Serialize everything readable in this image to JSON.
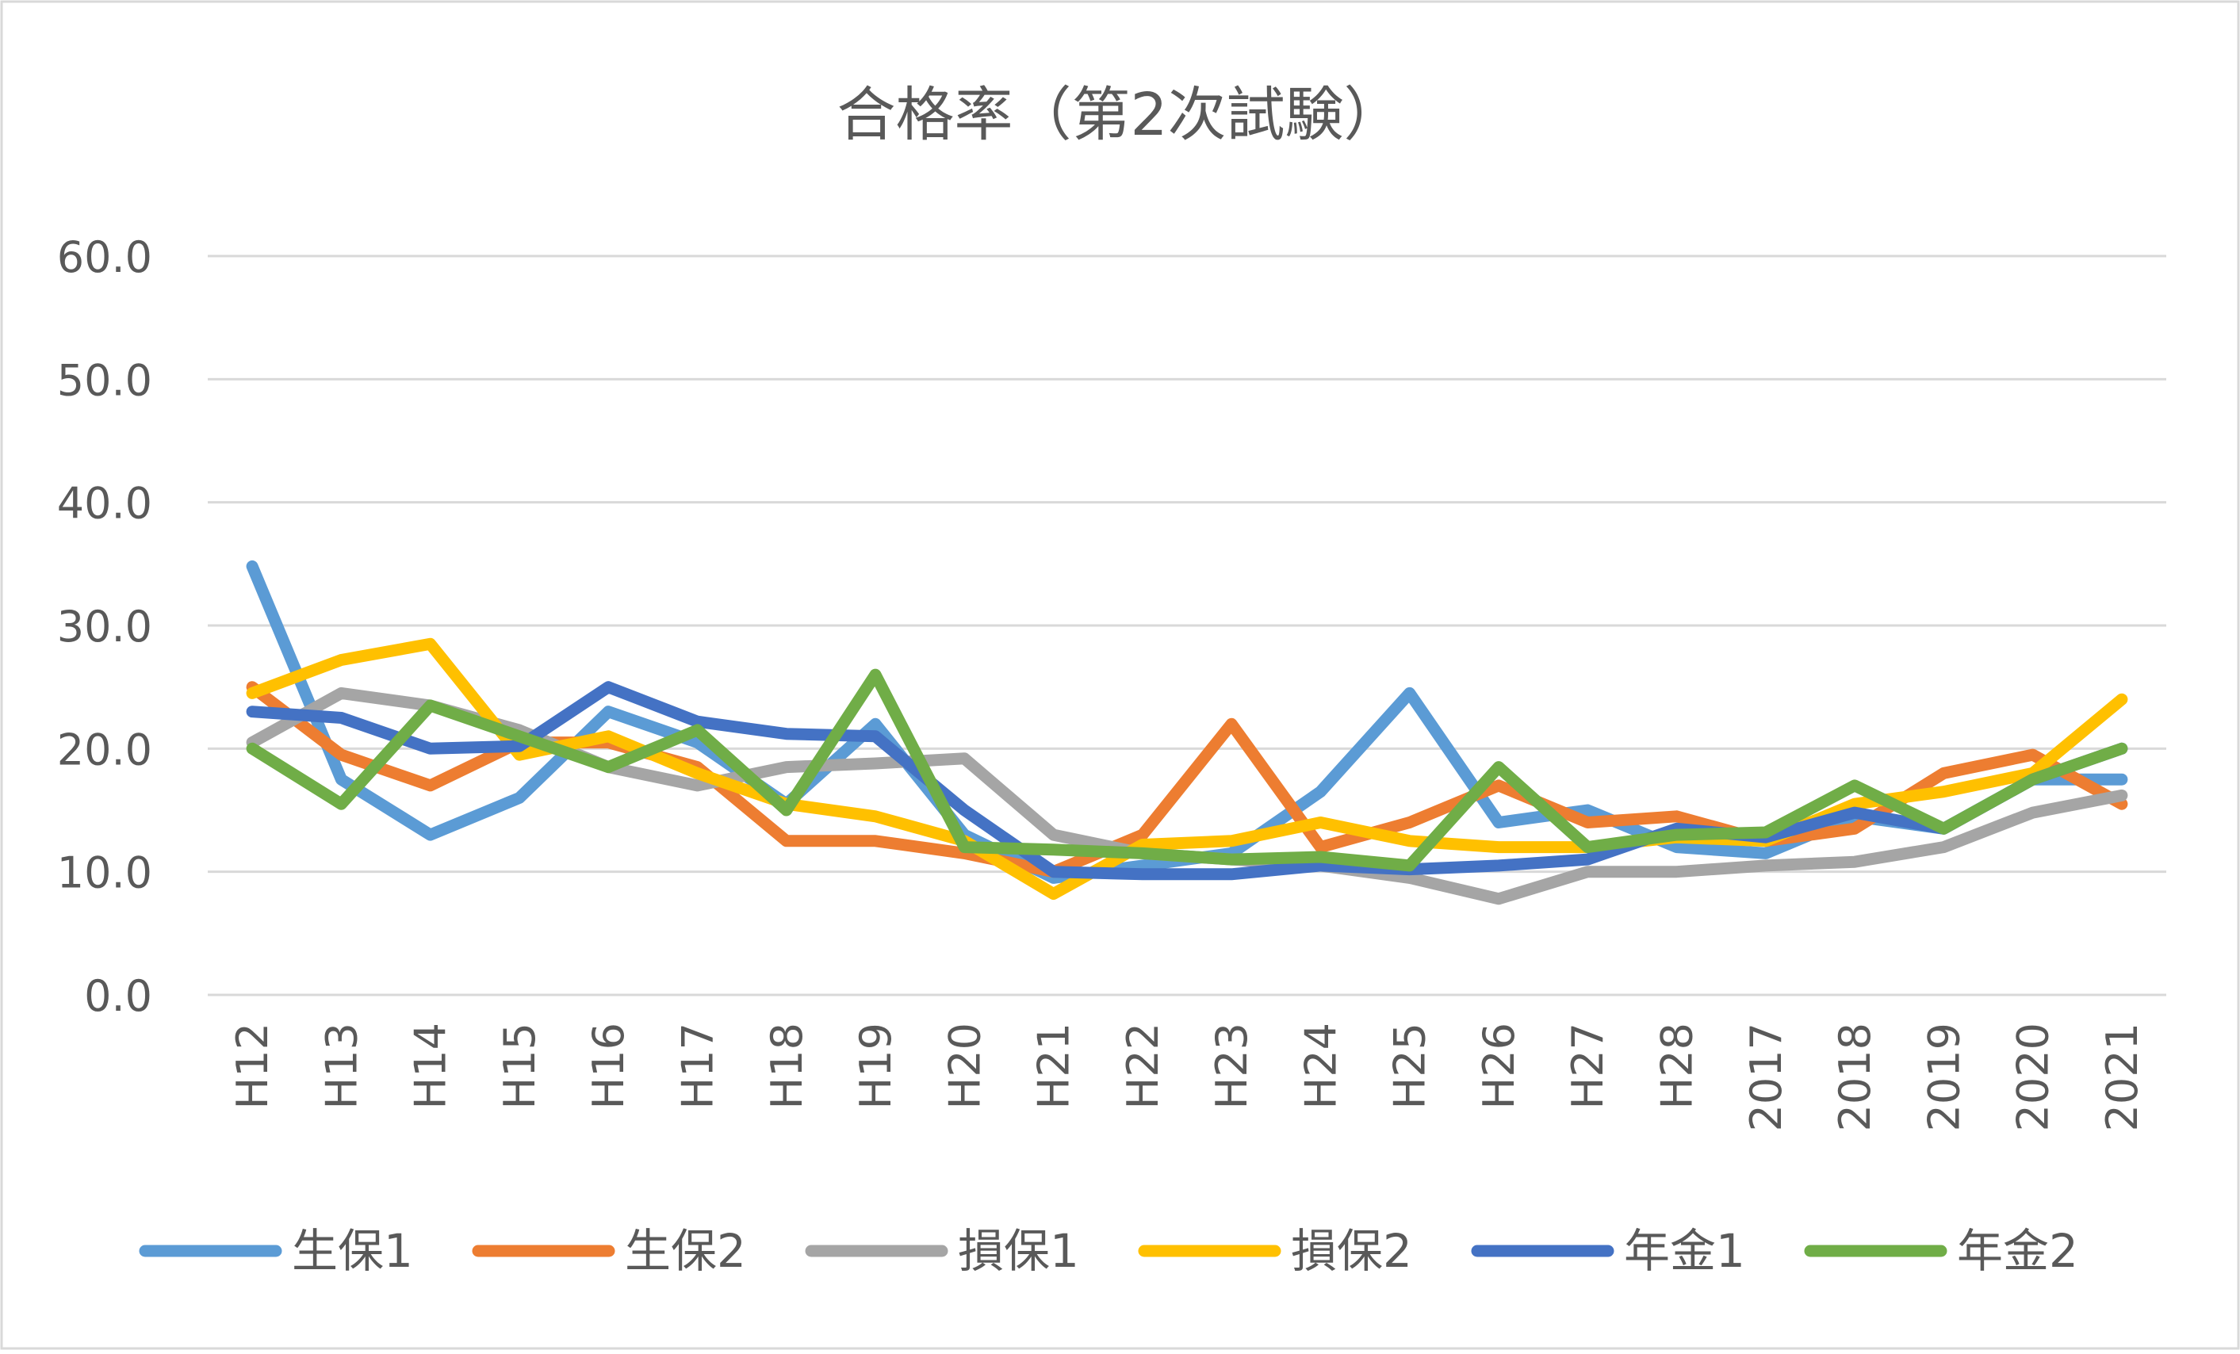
{
  "chart_data": {
    "type": "line",
    "title": "合格率（第2次試験）",
    "xlabel": "",
    "ylabel": "",
    "ylim": [
      0,
      60
    ],
    "y_ticks": [
      "0.0",
      "10.0",
      "20.0",
      "30.0",
      "40.0",
      "50.0",
      "60.0"
    ],
    "grid": true,
    "legend_position": "bottom",
    "categories": [
      "H12",
      "H13",
      "H14",
      "H15",
      "H16",
      "H17",
      "H18",
      "H19",
      "H20",
      "H21",
      "H22",
      "H23",
      "H24",
      "H25",
      "H26",
      "H27",
      "H28",
      "2017",
      "2018",
      "2019",
      "2020",
      "2021"
    ],
    "series": [
      {
        "name": "生保1",
        "color": "#5B9BD5",
        "values": [
          34.8,
          17.5,
          13.0,
          16.0,
          23.0,
          20.5,
          15.5,
          22.0,
          13.0,
          9.5,
          10.5,
          11.5,
          16.5,
          24.5,
          14.0,
          15.0,
          12.0,
          11.5,
          14.5,
          13.5,
          17.5,
          17.5
        ]
      },
      {
        "name": "生保2",
        "color": "#ED7D31",
        "values": [
          25.0,
          19.5,
          17.0,
          20.5,
          20.5,
          18.5,
          12.5,
          12.5,
          11.5,
          10.0,
          13.0,
          22.0,
          12.0,
          14.0,
          17.0,
          14.0,
          14.5,
          12.5,
          13.5,
          18.0,
          19.5,
          15.5
        ]
      },
      {
        "name": "損保1",
        "color": "#A5A5A5",
        "values": [
          20.5,
          24.5,
          23.5,
          21.5,
          18.5,
          17.0,
          18.5,
          18.8,
          19.2,
          13.0,
          11.5,
          11.0,
          10.5,
          9.5,
          7.8,
          10.0,
          10.0,
          10.5,
          10.8,
          12.0,
          14.8,
          16.2
        ]
      },
      {
        "name": "損保2",
        "color": "#FFC000",
        "values": [
          24.5,
          27.2,
          28.5,
          19.5,
          21.0,
          18.0,
          15.5,
          14.5,
          12.5,
          8.2,
          12.2,
          12.5,
          14.0,
          12.5,
          12.0,
          12.0,
          12.8,
          12.5,
          15.5,
          16.5,
          18.0,
          24.0
        ]
      },
      {
        "name": "年金1",
        "color": "#4472C4",
        "values": [
          23.0,
          22.5,
          20.0,
          20.2,
          25.0,
          22.2,
          21.2,
          21.0,
          15.0,
          10.0,
          9.8,
          9.8,
          10.5,
          10.2,
          10.5,
          11.0,
          13.5,
          12.8,
          14.8,
          13.5,
          17.5,
          20.0
        ]
      },
      {
        "name": "年金2",
        "color": "#70AD47",
        "values": [
          20.0,
          15.5,
          23.5,
          21.0,
          18.5,
          21.5,
          15.0,
          26.0,
          12.0,
          11.8,
          11.5,
          11.0,
          11.2,
          10.5,
          18.5,
          12.0,
          13.0,
          13.2,
          17.0,
          13.5,
          17.5,
          20.0
        ]
      }
    ]
  }
}
